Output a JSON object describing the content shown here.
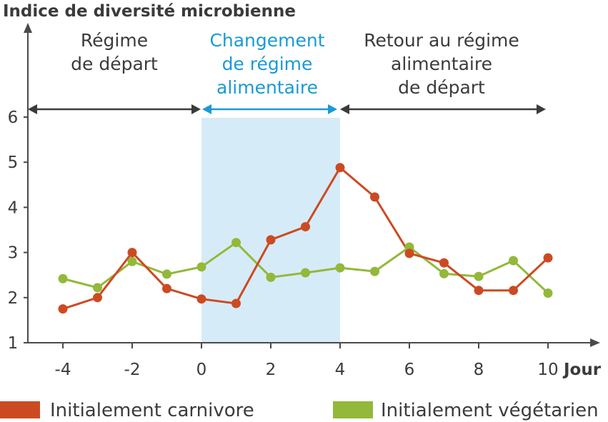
{
  "chart_data": {
    "type": "line",
    "ylabel": "Indice de diversité microbienne",
    "xlabel": "Jour",
    "xlim": [
      -5,
      11
    ],
    "ylim": [
      1,
      7
    ],
    "x_ticks": [
      "-4",
      "-2",
      "0",
      "2",
      "4",
      "6",
      "8",
      "10"
    ],
    "y_ticks": [
      "1",
      "2",
      "3",
      "4",
      "5",
      "6"
    ],
    "phases": [
      {
        "label": [
          "Régime",
          "de départ"
        ],
        "from": -5,
        "to": 0,
        "color": "#3b3b3b"
      },
      {
        "label": [
          "Changement",
          "de régime",
          "alimentaire"
        ],
        "from": 0,
        "to": 4,
        "color": "#1a9ad6",
        "highlight": "#d6ebf8"
      },
      {
        "label": [
          "Retour au régime",
          "alimentaire",
          "de départ"
        ],
        "from": 4,
        "to": 10,
        "color": "#3b3b3b"
      }
    ],
    "x": [
      -4,
      -3,
      -2,
      -1,
      0,
      1,
      2,
      3,
      4,
      5,
      6,
      7,
      8,
      9,
      10
    ],
    "series": [
      {
        "name": "Initialement carnivore",
        "color": "#cc4a22",
        "values": [
          1.75,
          2.0,
          3.0,
          2.2,
          1.97,
          1.87,
          3.28,
          3.57,
          4.88,
          4.23,
          2.98,
          2.77,
          2.16,
          2.16,
          2.88
        ]
      },
      {
        "name": "Initialement végétarien",
        "color": "#93b83a",
        "values": [
          2.42,
          2.22,
          2.8,
          2.52,
          2.68,
          3.22,
          2.45,
          2.55,
          2.66,
          2.58,
          3.12,
          2.53,
          2.47,
          2.82,
          2.1
        ]
      }
    ]
  }
}
